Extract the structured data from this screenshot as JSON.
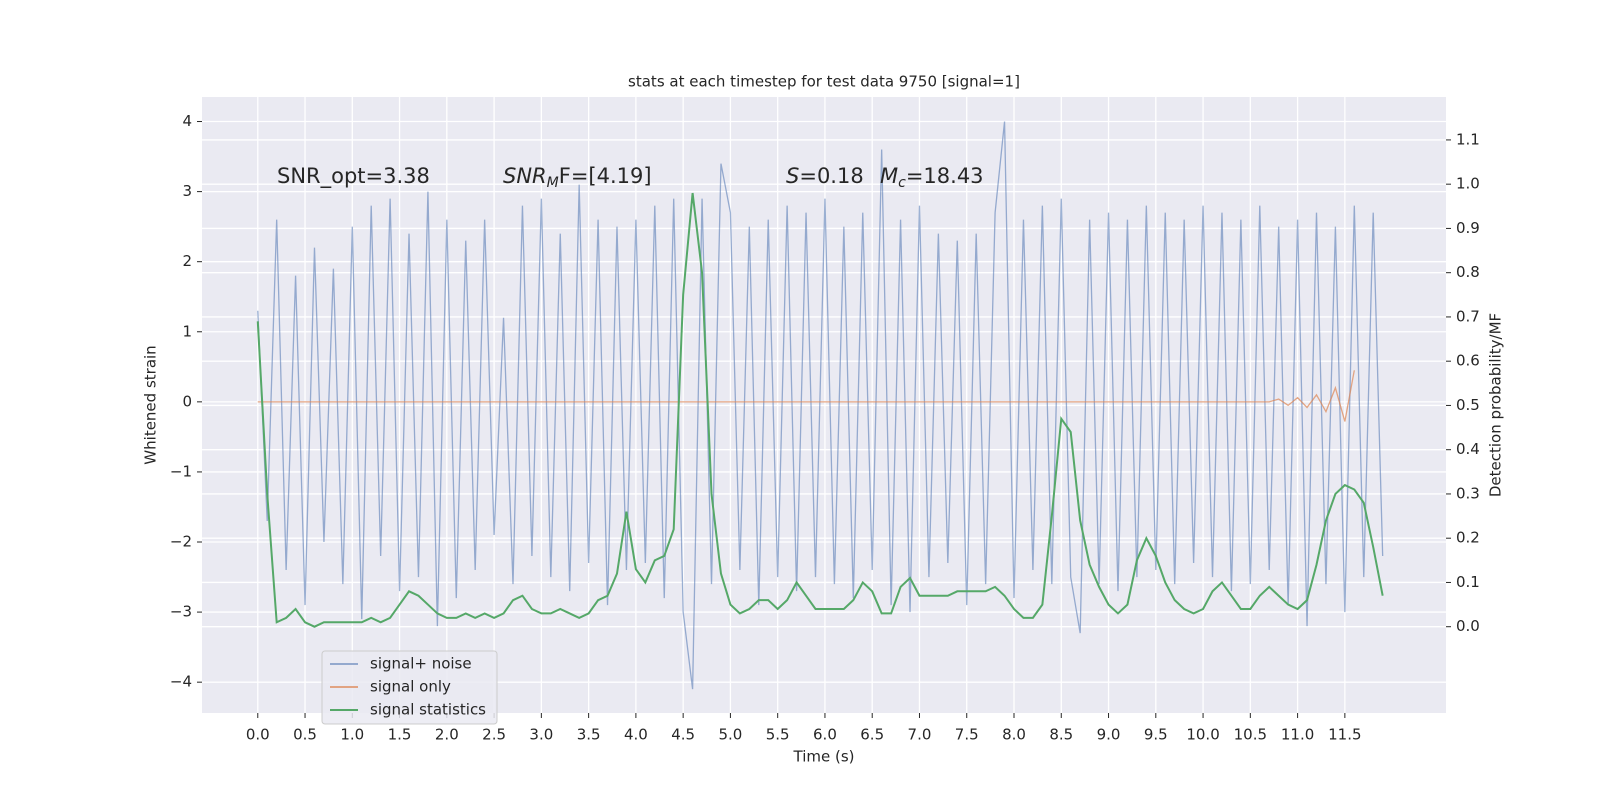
{
  "chart_data": {
    "type": "line",
    "title": "stats at each timestep for test data 9750 [signal=1]",
    "xlabel": "Time (s)",
    "ylabel": "Whitened strain",
    "y2label": "Detection probability/MF",
    "annotations": [
      {
        "text": "SNR_opt=3.38"
      },
      {
        "text": "SNR",
        "italic": true,
        "sub": "M",
        "tail": "F=[4.19]"
      },
      {
        "text": "S",
        "italic": true,
        "tail": "=0.18"
      },
      {
        "text": "M",
        "italic": true,
        "sub": "c",
        "tail": "=18.43"
      }
    ],
    "x": [
      0,
      0.1,
      0.2,
      0.3,
      0.4,
      0.5,
      0.6,
      0.7,
      0.8,
      0.9,
      1,
      1.1,
      1.2,
      1.3,
      1.4,
      1.5,
      1.6,
      1.7,
      1.8,
      1.9,
      2,
      2.1,
      2.2,
      2.3,
      2.4,
      2.5,
      2.6,
      2.7,
      2.8,
      2.9,
      3,
      3.1,
      3.2,
      3.3,
      3.4,
      3.5,
      3.6,
      3.7,
      3.8,
      3.9,
      4,
      4.1,
      4.2,
      4.3,
      4.4,
      4.5,
      4.6,
      4.7,
      4.8,
      4.9,
      5,
      5.1,
      5.2,
      5.3,
      5.4,
      5.5,
      5.6,
      5.7,
      5.8,
      5.9,
      6,
      6.1,
      6.2,
      6.3,
      6.4,
      6.5,
      6.6,
      6.7,
      6.8,
      6.9,
      7,
      7.1,
      7.2,
      7.3,
      7.4,
      7.5,
      7.6,
      7.7,
      7.8,
      7.9,
      8,
      8.1,
      8.2,
      8.3,
      8.4,
      8.5,
      8.6,
      8.7,
      8.8,
      8.9,
      9,
      9.1,
      9.2,
      9.3,
      9.4,
      9.5,
      9.6,
      9.7,
      9.8,
      9.9,
      10,
      10.1,
      10.2,
      10.3,
      10.4,
      10.5,
      10.6,
      10.7,
      10.8,
      10.9,
      11,
      11.1,
      11.2,
      11.3,
      11.4,
      11.5,
      11.6,
      11.7,
      11.8,
      11.9
    ],
    "series": [
      {
        "name": "signal+ noise",
        "color": "#4c72b0",
        "opacity": 0.55,
        "axis": "y",
        "values": [
          1.3,
          -1.7,
          2.6,
          -2.4,
          1.8,
          -2.9,
          2.2,
          -2.0,
          1.9,
          -2.6,
          2.5,
          -3.1,
          2.8,
          -2.2,
          2.9,
          -2.7,
          2.4,
          -2.5,
          3.0,
          -3.2,
          2.6,
          -2.8,
          2.3,
          -2.4,
          2.6,
          -1.9,
          1.2,
          -2.6,
          2.8,
          -2.2,
          2.9,
          -2.5,
          2.4,
          -2.7,
          3.1,
          -2.3,
          2.6,
          -2.9,
          2.5,
          -2.4,
          2.6,
          -2.3,
          2.8,
          -2.8,
          2.9,
          -3.0,
          -4.1,
          2.9,
          -2.6,
          3.4,
          2.7,
          -2.4,
          2.5,
          -2.9,
          2.6,
          -2.5,
          2.8,
          -2.7,
          2.7,
          -2.5,
          2.9,
          -2.6,
          2.5,
          -2.8,
          2.7,
          -2.4,
          3.6,
          -2.9,
          2.6,
          -3.0,
          2.8,
          -2.5,
          2.4,
          -2.3,
          2.3,
          -2.9,
          2.4,
          -2.6,
          2.7,
          4.0,
          -2.8,
          2.6,
          -2.4,
          2.8,
          -2.6,
          2.9,
          -2.5,
          -3.3,
          2.6,
          -2.6,
          2.7,
          -2.7,
          2.6,
          -2.5,
          2.8,
          -2.4,
          2.7,
          -2.6,
          2.6,
          -2.3,
          2.8,
          -2.5,
          2.7,
          -2.7,
          2.6,
          -2.6,
          2.8,
          -2.4,
          2.5,
          -2.9,
          2.6,
          -3.2,
          2.7,
          -2.6,
          2.5,
          -3.0,
          2.8,
          -2.5,
          2.7,
          -2.2
        ]
      },
      {
        "name": "signal only",
        "color": "#dd8452",
        "opacity": 0.7,
        "axis": "y",
        "values": [
          0,
          0,
          0,
          0,
          0,
          0,
          0,
          0,
          0,
          0,
          0,
          0,
          0,
          0,
          0,
          0,
          0,
          0,
          0,
          0,
          0,
          0,
          0,
          0,
          0,
          0,
          0,
          0,
          0,
          0,
          0,
          0,
          0,
          0,
          0,
          0,
          0,
          0,
          0,
          0,
          0,
          0,
          0,
          0,
          0,
          0,
          0,
          0,
          0,
          0,
          0,
          0,
          0,
          0,
          0,
          0,
          0,
          0,
          0,
          0,
          0,
          0,
          0,
          0,
          0,
          0,
          0,
          0,
          0,
          0,
          0,
          0,
          0,
          0,
          0,
          0,
          0,
          0,
          0,
          0,
          0,
          0,
          0,
          0,
          0,
          0,
          0,
          0,
          0,
          0,
          0,
          0,
          0,
          0,
          0,
          0,
          0,
          0,
          0,
          0,
          0,
          0,
          0,
          0,
          0,
          0,
          0,
          0,
          0.04,
          -0.05,
          0.06,
          -0.08,
          0.1,
          -0.14,
          0.2,
          -0.28,
          0.45,
          null,
          null,
          null
        ]
      },
      {
        "name": "signal statistics",
        "color": "#55a868",
        "opacity": 1,
        "axis": "y2",
        "values": [
          0.69,
          0.3,
          0.01,
          0.02,
          0.04,
          0.01,
          0,
          0.01,
          0.01,
          0.01,
          0.01,
          0.01,
          0.02,
          0.01,
          0.02,
          0.05,
          0.08,
          0.07,
          0.05,
          0.03,
          0.02,
          0.02,
          0.03,
          0.02,
          0.03,
          0.02,
          0.03,
          0.06,
          0.07,
          0.04,
          0.03,
          0.03,
          0.04,
          0.03,
          0.02,
          0.03,
          0.06,
          0.07,
          0.12,
          0.26,
          0.13,
          0.1,
          0.15,
          0.16,
          0.22,
          0.75,
          0.98,
          0.8,
          0.3,
          0.12,
          0.05,
          0.03,
          0.04,
          0.06,
          0.06,
          0.04,
          0.06,
          0.1,
          0.07,
          0.04,
          0.04,
          0.04,
          0.04,
          0.06,
          0.1,
          0.08,
          0.03,
          0.03,
          0.09,
          0.11,
          0.07,
          0.07,
          0.07,
          0.07,
          0.08,
          0.08,
          0.08,
          0.08,
          0.09,
          0.07,
          0.04,
          0.02,
          0.02,
          0.05,
          0.25,
          0.47,
          0.44,
          0.24,
          0.14,
          0.09,
          0.05,
          0.03,
          0.05,
          0.15,
          0.2,
          0.16,
          0.1,
          0.06,
          0.04,
          0.03,
          0.04,
          0.08,
          0.1,
          0.07,
          0.04,
          0.04,
          0.07,
          0.09,
          0.07,
          0.05,
          0.04,
          0.06,
          0.14,
          0.24,
          0.3,
          0.32,
          0.31,
          0.28,
          0.18,
          0.07
        ]
      }
    ],
    "xlim": [
      -0.59,
      12.57
    ],
    "xticks": [
      {
        "value": 0,
        "label": "0.0"
      },
      0.5,
      {
        "value": 1,
        "label": "1.0"
      },
      1.5,
      {
        "value": 2,
        "label": "2.0"
      },
      2.5,
      {
        "value": 3,
        "label": "3.0"
      },
      3.5,
      {
        "value": 4,
        "label": "4.0"
      },
      4.5,
      {
        "value": 5,
        "label": "5.0"
      },
      5.5,
      {
        "value": 6,
        "label": "6.0"
      },
      6.5,
      {
        "value": 7,
        "label": "7.0"
      },
      7.5,
      {
        "value": 8,
        "label": "8.0"
      },
      8.5,
      {
        "value": 9,
        "label": "9.0"
      },
      9.5,
      {
        "value": 10,
        "label": "10.0"
      },
      10.5,
      {
        "value": 11,
        "label": "11.0"
      },
      11.5
    ],
    "ylim": [
      -4.44,
      4.35
    ],
    "yticks": [
      {
        "value": -4,
        "label": "−4"
      },
      {
        "value": -3,
        "label": "−3"
      },
      {
        "value": -2,
        "label": "−2"
      },
      {
        "value": -1,
        "label": "−1"
      },
      0,
      1,
      2,
      3,
      4
    ],
    "y2lim": [
      -0.195,
      1.197
    ],
    "y2ticks": [
      {
        "value": 0,
        "label": "0.0"
      },
      0.1,
      0.2,
      0.3,
      0.4,
      0.5,
      0.6,
      0.7,
      0.8,
      0.9,
      {
        "value": 1,
        "label": "1.0"
      },
      1.1
    ],
    "grid": true,
    "legend": "lower left",
    "background": "#eaeaf2"
  }
}
